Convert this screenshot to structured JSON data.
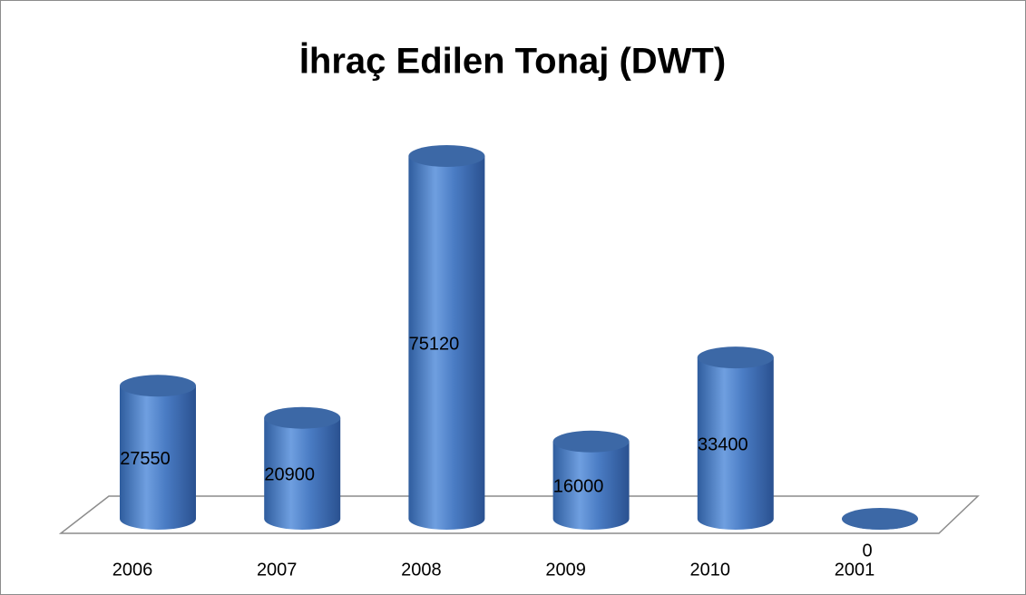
{
  "chart_data": {
    "type": "bar",
    "title": "İhraç Edilen Tonaj (DWT)",
    "categories": [
      "2006",
      "2007",
      "2008",
      "2009",
      "2010",
      "2001"
    ],
    "values": [
      27550,
      20900,
      75120,
      16000,
      33400,
      0
    ],
    "color": "#4a7cc4"
  }
}
